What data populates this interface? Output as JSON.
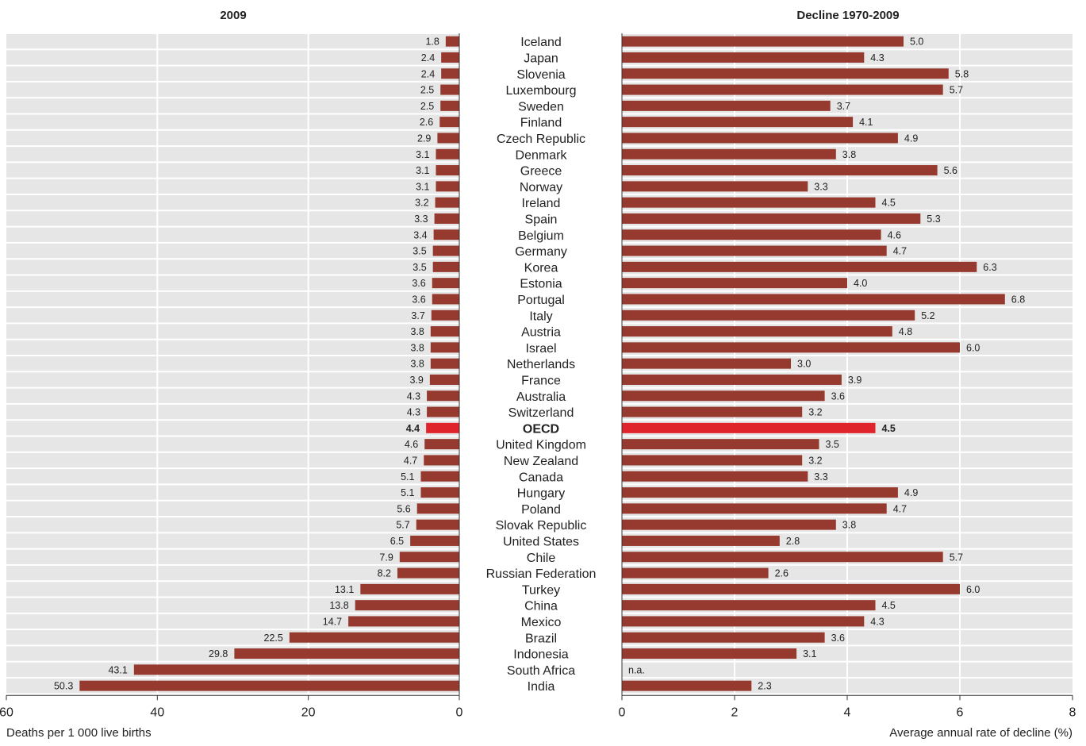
{
  "colors": {
    "bar": "#963a2f",
    "highlight": "#e0242b",
    "band": "#e6e6e6",
    "text": "#222222"
  },
  "chart_data": [
    {
      "type": "bar",
      "orientation": "horizontal",
      "title": "2009",
      "xlabel": "Deaths per 1 000 live births",
      "xlim": [
        0,
        60
      ],
      "xticks": [
        60,
        40,
        20,
        0
      ],
      "direction": "right-to-left",
      "categories": [
        "Iceland",
        "Japan",
        "Slovenia",
        "Luxembourg",
        "Sweden",
        "Finland",
        "Czech Republic",
        "Denmark",
        "Greece",
        "Norway",
        "Ireland",
        "Spain",
        "Belgium",
        "Germany",
        "Korea",
        "Estonia",
        "Portugal",
        "Italy",
        "Austria",
        "Israel",
        "Netherlands",
        "France",
        "Australia",
        "Switzerland",
        "OECD",
        "United Kingdom",
        "New Zealand",
        "Canada",
        "Hungary",
        "Poland",
        "Slovak Republic",
        "United States",
        "Chile",
        "Russian Federation",
        "Turkey",
        "China",
        "Mexico",
        "Brazil",
        "Indonesia",
        "South Africa",
        "India"
      ],
      "values": [
        1.8,
        2.4,
        2.4,
        2.5,
        2.5,
        2.6,
        2.9,
        3.1,
        3.1,
        3.1,
        3.2,
        3.3,
        3.4,
        3.5,
        3.5,
        3.6,
        3.6,
        3.7,
        3.8,
        3.8,
        3.8,
        3.9,
        4.3,
        4.3,
        4.4,
        4.6,
        4.7,
        5.1,
        5.1,
        5.6,
        5.7,
        6.5,
        7.9,
        8.2,
        13.1,
        13.8,
        14.7,
        22.5,
        29.8,
        43.1,
        50.3
      ],
      "labels": [
        "1.8",
        "2.4",
        "2.4",
        "2.5",
        "2.5",
        "2.6",
        "2.9",
        "3.1",
        "3.1",
        "3.1",
        "3.2",
        "3.3",
        "3.4",
        "3.5",
        "3.5",
        "3.6",
        "3.6",
        "3.7",
        "3.8",
        "3.8",
        "3.8",
        "3.9",
        "4.3",
        "4.3",
        "4.4",
        "4.6",
        "4.7",
        "5.1",
        "5.1",
        "5.6",
        "5.7",
        "6.5",
        "7.9",
        "8.2",
        "13.1",
        "13.8",
        "14.7",
        "22.5",
        "29.8",
        "43.1",
        "50.3"
      ],
      "highlight": "OECD",
      "grid": true
    },
    {
      "type": "bar",
      "orientation": "horizontal",
      "title": "Decline 1970-2009",
      "xlabel": "Average annual rate of decline (%)",
      "xlim": [
        0,
        8
      ],
      "xticks": [
        0,
        2,
        4,
        6,
        8
      ],
      "direction": "left-to-right",
      "categories": [
        "Iceland",
        "Japan",
        "Slovenia",
        "Luxembourg",
        "Sweden",
        "Finland",
        "Czech Republic",
        "Denmark",
        "Greece",
        "Norway",
        "Ireland",
        "Spain",
        "Belgium",
        "Germany",
        "Korea",
        "Estonia",
        "Portugal",
        "Italy",
        "Austria",
        "Israel",
        "Netherlands",
        "France",
        "Australia",
        "Switzerland",
        "OECD",
        "United Kingdom",
        "New Zealand",
        "Canada",
        "Hungary",
        "Poland",
        "Slovak Republic",
        "United States",
        "Chile",
        "Russian Federation",
        "Turkey",
        "China",
        "Mexico",
        "Brazil",
        "Indonesia",
        "South Africa",
        "India"
      ],
      "values": [
        5.0,
        4.3,
        5.8,
        5.7,
        3.7,
        4.1,
        4.9,
        3.8,
        5.6,
        3.3,
        4.5,
        5.3,
        4.6,
        4.7,
        6.3,
        4.0,
        6.8,
        5.2,
        4.8,
        6.0,
        3.0,
        3.9,
        3.6,
        3.2,
        4.5,
        3.5,
        3.2,
        3.3,
        4.9,
        4.7,
        3.8,
        2.8,
        5.7,
        2.6,
        6.0,
        4.5,
        4.3,
        3.6,
        3.1,
        null,
        2.3
      ],
      "labels": [
        "5.0",
        "4.3",
        "5.8",
        "5.7",
        "3.7",
        "4.1",
        "4.9",
        "3.8",
        "5.6",
        "3.3",
        "4.5",
        "5.3",
        "4.6",
        "4.7",
        "6.3",
        "4.0",
        "6.8",
        "5.2",
        "4.8",
        "6.0",
        "3.0",
        "3.9",
        "3.6",
        "3.2",
        "4.5",
        "3.5",
        "3.2",
        "3.3",
        "4.9",
        "4.7",
        "3.8",
        "2.8",
        "5.7",
        "2.6",
        "6.0",
        "4.5",
        "4.3",
        "3.6",
        "3.1",
        "n.a.",
        "2.3"
      ],
      "highlight": "OECD",
      "grid": true
    }
  ]
}
